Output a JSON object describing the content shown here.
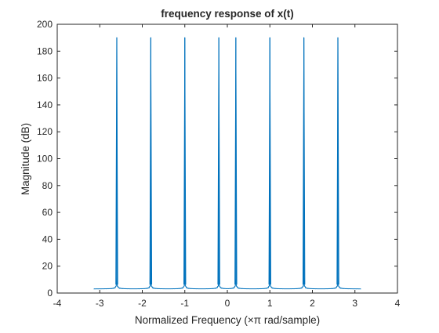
{
  "chart_data": {
    "type": "line",
    "title": "frequency response of x(t)",
    "xlabel": "Normalized Frequency (×π rad/sample)",
    "ylabel": "Magnitude (dB)",
    "xlim": [
      -4,
      4
    ],
    "ylim": [
      0,
      200
    ],
    "xticks": [
      -4,
      -3,
      -2,
      -1,
      0,
      1,
      2,
      3,
      4
    ],
    "yticks": [
      0,
      20,
      40,
      60,
      80,
      100,
      120,
      140,
      160,
      180,
      200
    ],
    "xtick_labels": [
      "-4",
      "-3",
      "-2",
      "-1",
      "0",
      "1",
      "2",
      "3",
      "4"
    ],
    "ytick_labels": [
      "0",
      "20",
      "40",
      "60",
      "80",
      "100",
      "120",
      "140",
      "160",
      "180",
      "200"
    ],
    "grid": false,
    "x_range": [
      -3.1416,
      3.1416
    ],
    "peaks": [
      {
        "x": -2.6,
        "y": 190
      },
      {
        "x": -1.8,
        "y": 190
      },
      {
        "x": -1.0,
        "y": 190
      },
      {
        "x": -0.2,
        "y": 190
      },
      {
        "x": 0.2,
        "y": 190
      },
      {
        "x": 1.0,
        "y": 190
      },
      {
        "x": 1.8,
        "y": 190
      },
      {
        "x": 2.6,
        "y": 190
      }
    ],
    "baseline_magnitude": 3,
    "series": [
      {
        "color": "#0072BD"
      }
    ]
  }
}
